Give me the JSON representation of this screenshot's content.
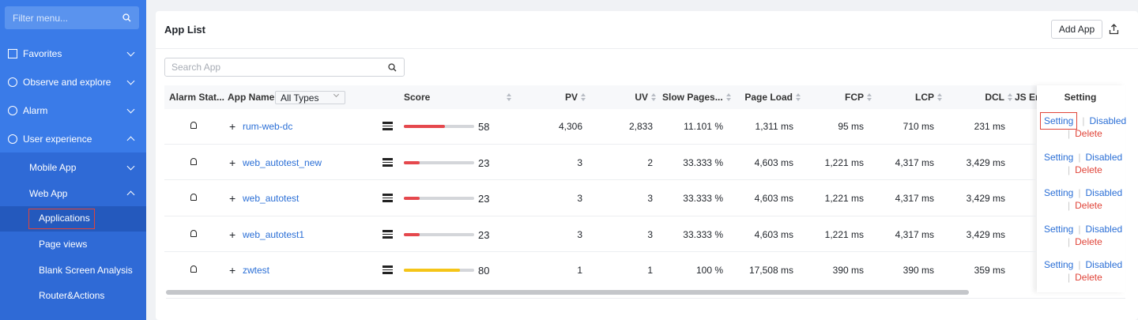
{
  "sidebar": {
    "search_placeholder": "Filter menu...",
    "menu": [
      "Favorites",
      "Observe and explore",
      "Alarm",
      "User experience"
    ],
    "submenu": [
      "Mobile App",
      "Web App",
      "Applications",
      "Page views",
      "Blank Screen Analysis",
      "Router&Actions"
    ]
  },
  "header": {
    "title": "App List",
    "add_button": "Add App"
  },
  "search_placeholder": "Search App",
  "table": {
    "columns": [
      "Alarm Stat...",
      "App Name",
      "Score",
      "PV",
      "UV",
      "Slow Pages...",
      "Page Load",
      "FCP",
      "LCP",
      "DCL",
      "JS Err",
      "Setting"
    ],
    "type_filter": "All Types",
    "actions": {
      "setting": "Setting",
      "disabled": "Disabled",
      "delete": "Delete"
    },
    "rows": [
      {
        "name": "rum-web-dc",
        "score": 58,
        "score_color": "#e5484d",
        "pv": "4,306",
        "uv": "2,833",
        "slow": "11.101 %",
        "page_load": "1,311 ms",
        "fcp": "95 ms",
        "lcp": "710 ms",
        "dcl": "231 ms"
      },
      {
        "name": "web_autotest_new",
        "score": 23,
        "score_color": "#e5484d",
        "pv": "3",
        "uv": "2",
        "slow": "33.333 %",
        "page_load": "4,603 ms",
        "fcp": "1,221 ms",
        "lcp": "4,317 ms",
        "dcl": "3,429 ms"
      },
      {
        "name": "web_autotest",
        "score": 23,
        "score_color": "#e5484d",
        "pv": "3",
        "uv": "3",
        "slow": "33.333 %",
        "page_load": "4,603 ms",
        "fcp": "1,221 ms",
        "lcp": "4,317 ms",
        "dcl": "3,429 ms"
      },
      {
        "name": "web_autotest1",
        "score": 23,
        "score_color": "#e5484d",
        "pv": "3",
        "uv": "3",
        "slow": "33.333 %",
        "page_load": "4,603 ms",
        "fcp": "1,221 ms",
        "lcp": "4,317 ms",
        "dcl": "3,429 ms"
      },
      {
        "name": "zwtest",
        "score": 80,
        "score_color": "#f5c518",
        "pv": "1",
        "uv": "1",
        "slow": "100 %",
        "page_load": "17,508 ms",
        "fcp": "390 ms",
        "lcp": "390 ms",
        "dcl": "359 ms"
      }
    ]
  }
}
